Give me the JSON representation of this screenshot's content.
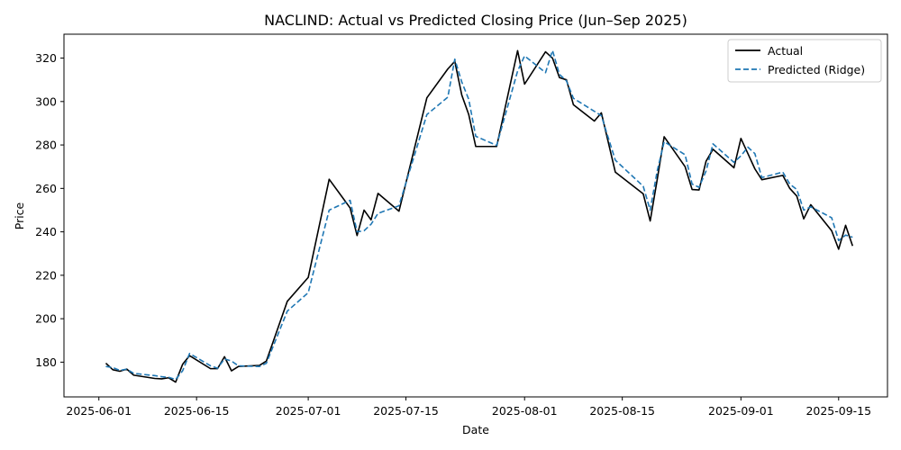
{
  "chart_data": {
    "type": "line",
    "title": "NACLIND: Actual vs Predicted Closing Price (Jun–Sep 2025)",
    "xlabel": "Date",
    "ylabel": "Price",
    "xlim": [
      "2025-05-27",
      "2025-09-22"
    ],
    "ylim": [
      164,
      331
    ],
    "x_ticks": [
      "2025-06-01",
      "2025-06-15",
      "2025-07-01",
      "2025-07-15",
      "2025-08-01",
      "2025-08-15",
      "2025-09-01",
      "2025-09-15"
    ],
    "y_ticks": [
      180,
      200,
      220,
      240,
      260,
      280,
      300,
      320
    ],
    "grid": false,
    "legend": {
      "position": "top-right"
    },
    "series": [
      {
        "name": "Actual",
        "color": "#000000",
        "style": "solid",
        "points": [
          [
            "2025-06-02",
            179.5
          ],
          [
            "2025-06-03",
            176.5
          ],
          [
            "2025-06-04",
            175.8
          ],
          [
            "2025-06-05",
            176.8
          ],
          [
            "2025-06-06",
            174.0
          ],
          [
            "2025-06-09",
            172.5
          ],
          [
            "2025-06-10",
            172.3
          ],
          [
            "2025-06-11",
            172.8
          ],
          [
            "2025-06-12",
            170.8
          ],
          [
            "2025-06-13",
            179.0
          ],
          [
            "2025-06-14",
            183.0
          ],
          [
            "2025-06-17",
            177.0
          ],
          [
            "2025-06-18",
            177.0
          ],
          [
            "2025-06-19",
            182.5
          ],
          [
            "2025-06-20",
            176.0
          ],
          [
            "2025-06-21",
            178.0
          ],
          [
            "2025-06-24",
            178.5
          ],
          [
            "2025-06-25",
            180.5
          ],
          [
            "2025-06-28",
            208.0
          ],
          [
            "2025-07-01",
            219.0
          ],
          [
            "2025-07-04",
            264.2
          ],
          [
            "2025-07-07",
            251.0
          ],
          [
            "2025-07-08",
            238.3
          ],
          [
            "2025-07-09",
            250.0
          ],
          [
            "2025-07-10",
            245.5
          ],
          [
            "2025-07-11",
            257.7
          ],
          [
            "2025-07-14",
            249.5
          ],
          [
            "2025-07-18",
            301.7
          ],
          [
            "2025-07-21",
            315.0
          ],
          [
            "2025-07-22",
            318.5
          ],
          [
            "2025-07-23",
            303.0
          ],
          [
            "2025-07-24",
            294.0
          ],
          [
            "2025-07-25",
            279.3
          ],
          [
            "2025-07-28",
            279.3
          ],
          [
            "2025-07-31",
            323.4
          ],
          [
            "2025-08-01",
            308.0
          ],
          [
            "2025-08-04",
            322.9
          ],
          [
            "2025-08-05",
            320.0
          ],
          [
            "2025-08-06",
            311.0
          ],
          [
            "2025-08-07",
            310.0
          ],
          [
            "2025-08-08",
            298.5
          ],
          [
            "2025-08-11",
            291.0
          ],
          [
            "2025-08-12",
            294.8
          ],
          [
            "2025-08-14",
            267.5
          ],
          [
            "2025-08-18",
            257.5
          ],
          [
            "2025-08-19",
            245.0
          ],
          [
            "2025-08-20",
            264.0
          ],
          [
            "2025-08-21",
            283.8
          ],
          [
            "2025-08-24",
            270.0
          ],
          [
            "2025-08-25",
            259.5
          ],
          [
            "2025-08-26",
            259.3
          ],
          [
            "2025-08-27",
            272.5
          ],
          [
            "2025-08-28",
            278.0
          ],
          [
            "2025-08-31",
            269.5
          ],
          [
            "2025-09-01",
            283.0
          ],
          [
            "2025-09-02",
            276.0
          ],
          [
            "2025-09-03",
            269.0
          ],
          [
            "2025-09-04",
            264.0
          ],
          [
            "2025-09-07",
            266.0
          ],
          [
            "2025-09-08",
            260.0
          ],
          [
            "2025-09-09",
            256.5
          ],
          [
            "2025-09-10",
            246.0
          ],
          [
            "2025-09-11",
            252.5
          ],
          [
            "2025-09-14",
            240.5
          ],
          [
            "2025-09-15",
            232.0
          ],
          [
            "2025-09-16",
            243.0
          ],
          [
            "2025-09-17",
            233.5
          ]
        ]
      },
      {
        "name": "Predicted (Ridge)",
        "color": "#1f77b4",
        "style": "dashed",
        "points": [
          [
            "2025-06-02",
            178.0
          ],
          [
            "2025-06-03",
            177.5
          ],
          [
            "2025-06-04",
            176.2
          ],
          [
            "2025-06-05",
            176.8
          ],
          [
            "2025-06-06",
            174.8
          ],
          [
            "2025-06-09",
            173.8
          ],
          [
            "2025-06-10",
            173.3
          ],
          [
            "2025-06-11",
            173.0
          ],
          [
            "2025-06-12",
            172.0
          ],
          [
            "2025-06-13",
            176.0
          ],
          [
            "2025-06-14",
            184.0
          ],
          [
            "2025-06-17",
            178.3
          ],
          [
            "2025-06-18",
            177.2
          ],
          [
            "2025-06-19",
            181.5
          ],
          [
            "2025-06-20",
            180.5
          ],
          [
            "2025-06-21",
            178.3
          ],
          [
            "2025-06-24",
            178.0
          ],
          [
            "2025-06-25",
            179.5
          ],
          [
            "2025-06-28",
            203.5
          ],
          [
            "2025-07-01",
            212.0
          ],
          [
            "2025-07-04",
            250.0
          ],
          [
            "2025-07-07",
            254.5
          ],
          [
            "2025-07-08",
            240.0
          ],
          [
            "2025-07-09",
            240.5
          ],
          [
            "2025-07-10",
            243.5
          ],
          [
            "2025-07-11",
            248.5
          ],
          [
            "2025-07-14",
            252.0
          ],
          [
            "2025-07-18",
            294.0
          ],
          [
            "2025-07-21",
            302.0
          ],
          [
            "2025-07-22",
            319.5
          ],
          [
            "2025-07-23",
            309.0
          ],
          [
            "2025-07-24",
            301.0
          ],
          [
            "2025-07-25",
            284.0
          ],
          [
            "2025-07-28",
            279.8
          ],
          [
            "2025-07-31",
            314.0
          ],
          [
            "2025-08-01",
            321.0
          ],
          [
            "2025-08-04",
            313.3
          ],
          [
            "2025-08-05",
            323.5
          ],
          [
            "2025-08-06",
            312.5
          ],
          [
            "2025-08-07",
            309.5
          ],
          [
            "2025-08-08",
            301.5
          ],
          [
            "2025-08-11",
            295.5
          ],
          [
            "2025-08-12",
            293.5
          ],
          [
            "2025-08-14",
            273.0
          ],
          [
            "2025-08-18",
            261.0
          ],
          [
            "2025-08-19",
            250.0
          ],
          [
            "2025-08-20",
            268.0
          ],
          [
            "2025-08-21",
            281.5
          ],
          [
            "2025-08-24",
            275.5
          ],
          [
            "2025-08-25",
            262.0
          ],
          [
            "2025-08-26",
            260.5
          ],
          [
            "2025-08-27",
            268.0
          ],
          [
            "2025-08-28",
            280.5
          ],
          [
            "2025-08-31",
            272.0
          ],
          [
            "2025-09-01",
            275.0
          ],
          [
            "2025-09-02",
            279.0
          ],
          [
            "2025-09-03",
            276.0
          ],
          [
            "2025-09-04",
            265.0
          ],
          [
            "2025-09-07",
            267.5
          ],
          [
            "2025-09-08",
            262.0
          ],
          [
            "2025-09-09",
            259.5
          ],
          [
            "2025-09-10",
            250.0
          ],
          [
            "2025-09-11",
            251.5
          ],
          [
            "2025-09-14",
            246.5
          ],
          [
            "2025-09-15",
            236.0
          ],
          [
            "2025-09-16",
            238.5
          ],
          [
            "2025-09-17",
            237.5
          ]
        ]
      }
    ]
  }
}
